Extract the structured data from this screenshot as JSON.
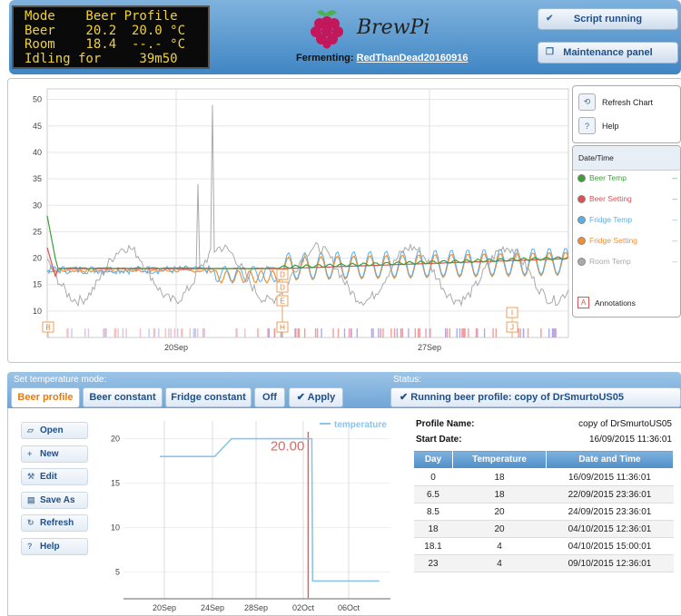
{
  "lcd": {
    "lines": [
      "Mode    Beer Profile",
      "Beer    20.2  20.0 °C",
      "Room    18.4  --.- °C",
      "Idling for     39m50"
    ]
  },
  "header": {
    "brand": "BrewPi",
    "fermenting_label": "Fermenting:",
    "beer_name": "RedThanDead20160916",
    "script_button": "Script running",
    "maintenance_button": "Maintenance panel"
  },
  "chart_panel": {
    "refresh_label": "Refresh Chart",
    "help_label": "Help",
    "legend_header": "Date/Time",
    "legend": [
      {
        "name": "Beer Temp",
        "color": "#3a9e3a",
        "value": "--"
      },
      {
        "name": "Beer Setting",
        "color": "#e05050",
        "value": "--"
      },
      {
        "name": "Fridge Temp",
        "color": "#5aaee8",
        "value": "--"
      },
      {
        "name": "Fridge Setting",
        "color": "#f09030",
        "value": "--"
      },
      {
        "name": "Room Temp",
        "color": "#aaaaaa",
        "value": "--"
      }
    ],
    "annotations_label": "Annotations",
    "annotations_icon": "A"
  },
  "mode": {
    "title": "Set temperature mode:",
    "tabs": [
      "Beer profile",
      "Beer constant",
      "Fridge constant",
      "Off"
    ],
    "apply": "Apply",
    "status_title": "Status:",
    "status_text": "Running beer profile: copy of DrSmurtoUS05"
  },
  "profile_buttons": [
    "Open",
    "New",
    "Edit",
    "Save As",
    "Refresh",
    "Help"
  ],
  "profile": {
    "name_label": "Profile Name:",
    "name": "copy of DrSmurtoUS05",
    "start_label": "Start Date:",
    "start": "16/09/2015 11:36:01",
    "columns": [
      "Day",
      "Temperature",
      "Date and Time"
    ],
    "rows": [
      [
        "0",
        "18",
        "16/09/2015 11:36:01"
      ],
      [
        "6.5",
        "18",
        "22/09/2015 23:36:01"
      ],
      [
        "8.5",
        "20",
        "24/09/2015 23:36:01"
      ],
      [
        "18",
        "20",
        "04/10/2015 12:36:01"
      ],
      [
        "18.1",
        "4",
        "04/10/2015 15:00:01"
      ],
      [
        "23",
        "4",
        "09/10/2015 12:36:01"
      ]
    ]
  },
  "chart_data": [
    {
      "type": "line",
      "y_ticks": [
        10,
        15,
        20,
        25,
        30,
        35,
        40,
        45,
        50
      ],
      "ylim": [
        5,
        52
      ],
      "x_ticks": [
        "20Sep",
        "27Sep"
      ],
      "series": [
        {
          "name": "Beer Temp",
          "color": "#3a9e3a"
        },
        {
          "name": "Beer Setting",
          "color": "#e05050"
        },
        {
          "name": "Fridge Temp",
          "color": "#5aaee8"
        },
        {
          "name": "Fridge Setting",
          "color": "#f09030"
        },
        {
          "name": "Room Temp",
          "color": "#aaaaaa"
        }
      ],
      "annotations": [
        "B",
        "D",
        "D",
        "E",
        "H",
        "I",
        "J"
      ]
    },
    {
      "type": "line",
      "legend": "temperature",
      "current_value_label": "20.00",
      "y_ticks": [
        5,
        10,
        15,
        20
      ],
      "ylim": [
        2,
        22
      ],
      "x_ticks": [
        "20Sep",
        "24Sep",
        "28Sep",
        "02Oct",
        "06Oct"
      ],
      "series": [
        {
          "name": "temperature",
          "color": "#8cc4ea",
          "x_days": [
            0,
            6.5,
            8.5,
            18,
            18.1,
            23,
            26
          ],
          "values": [
            18,
            18,
            20,
            20,
            4,
            4,
            4
          ]
        }
      ]
    }
  ]
}
